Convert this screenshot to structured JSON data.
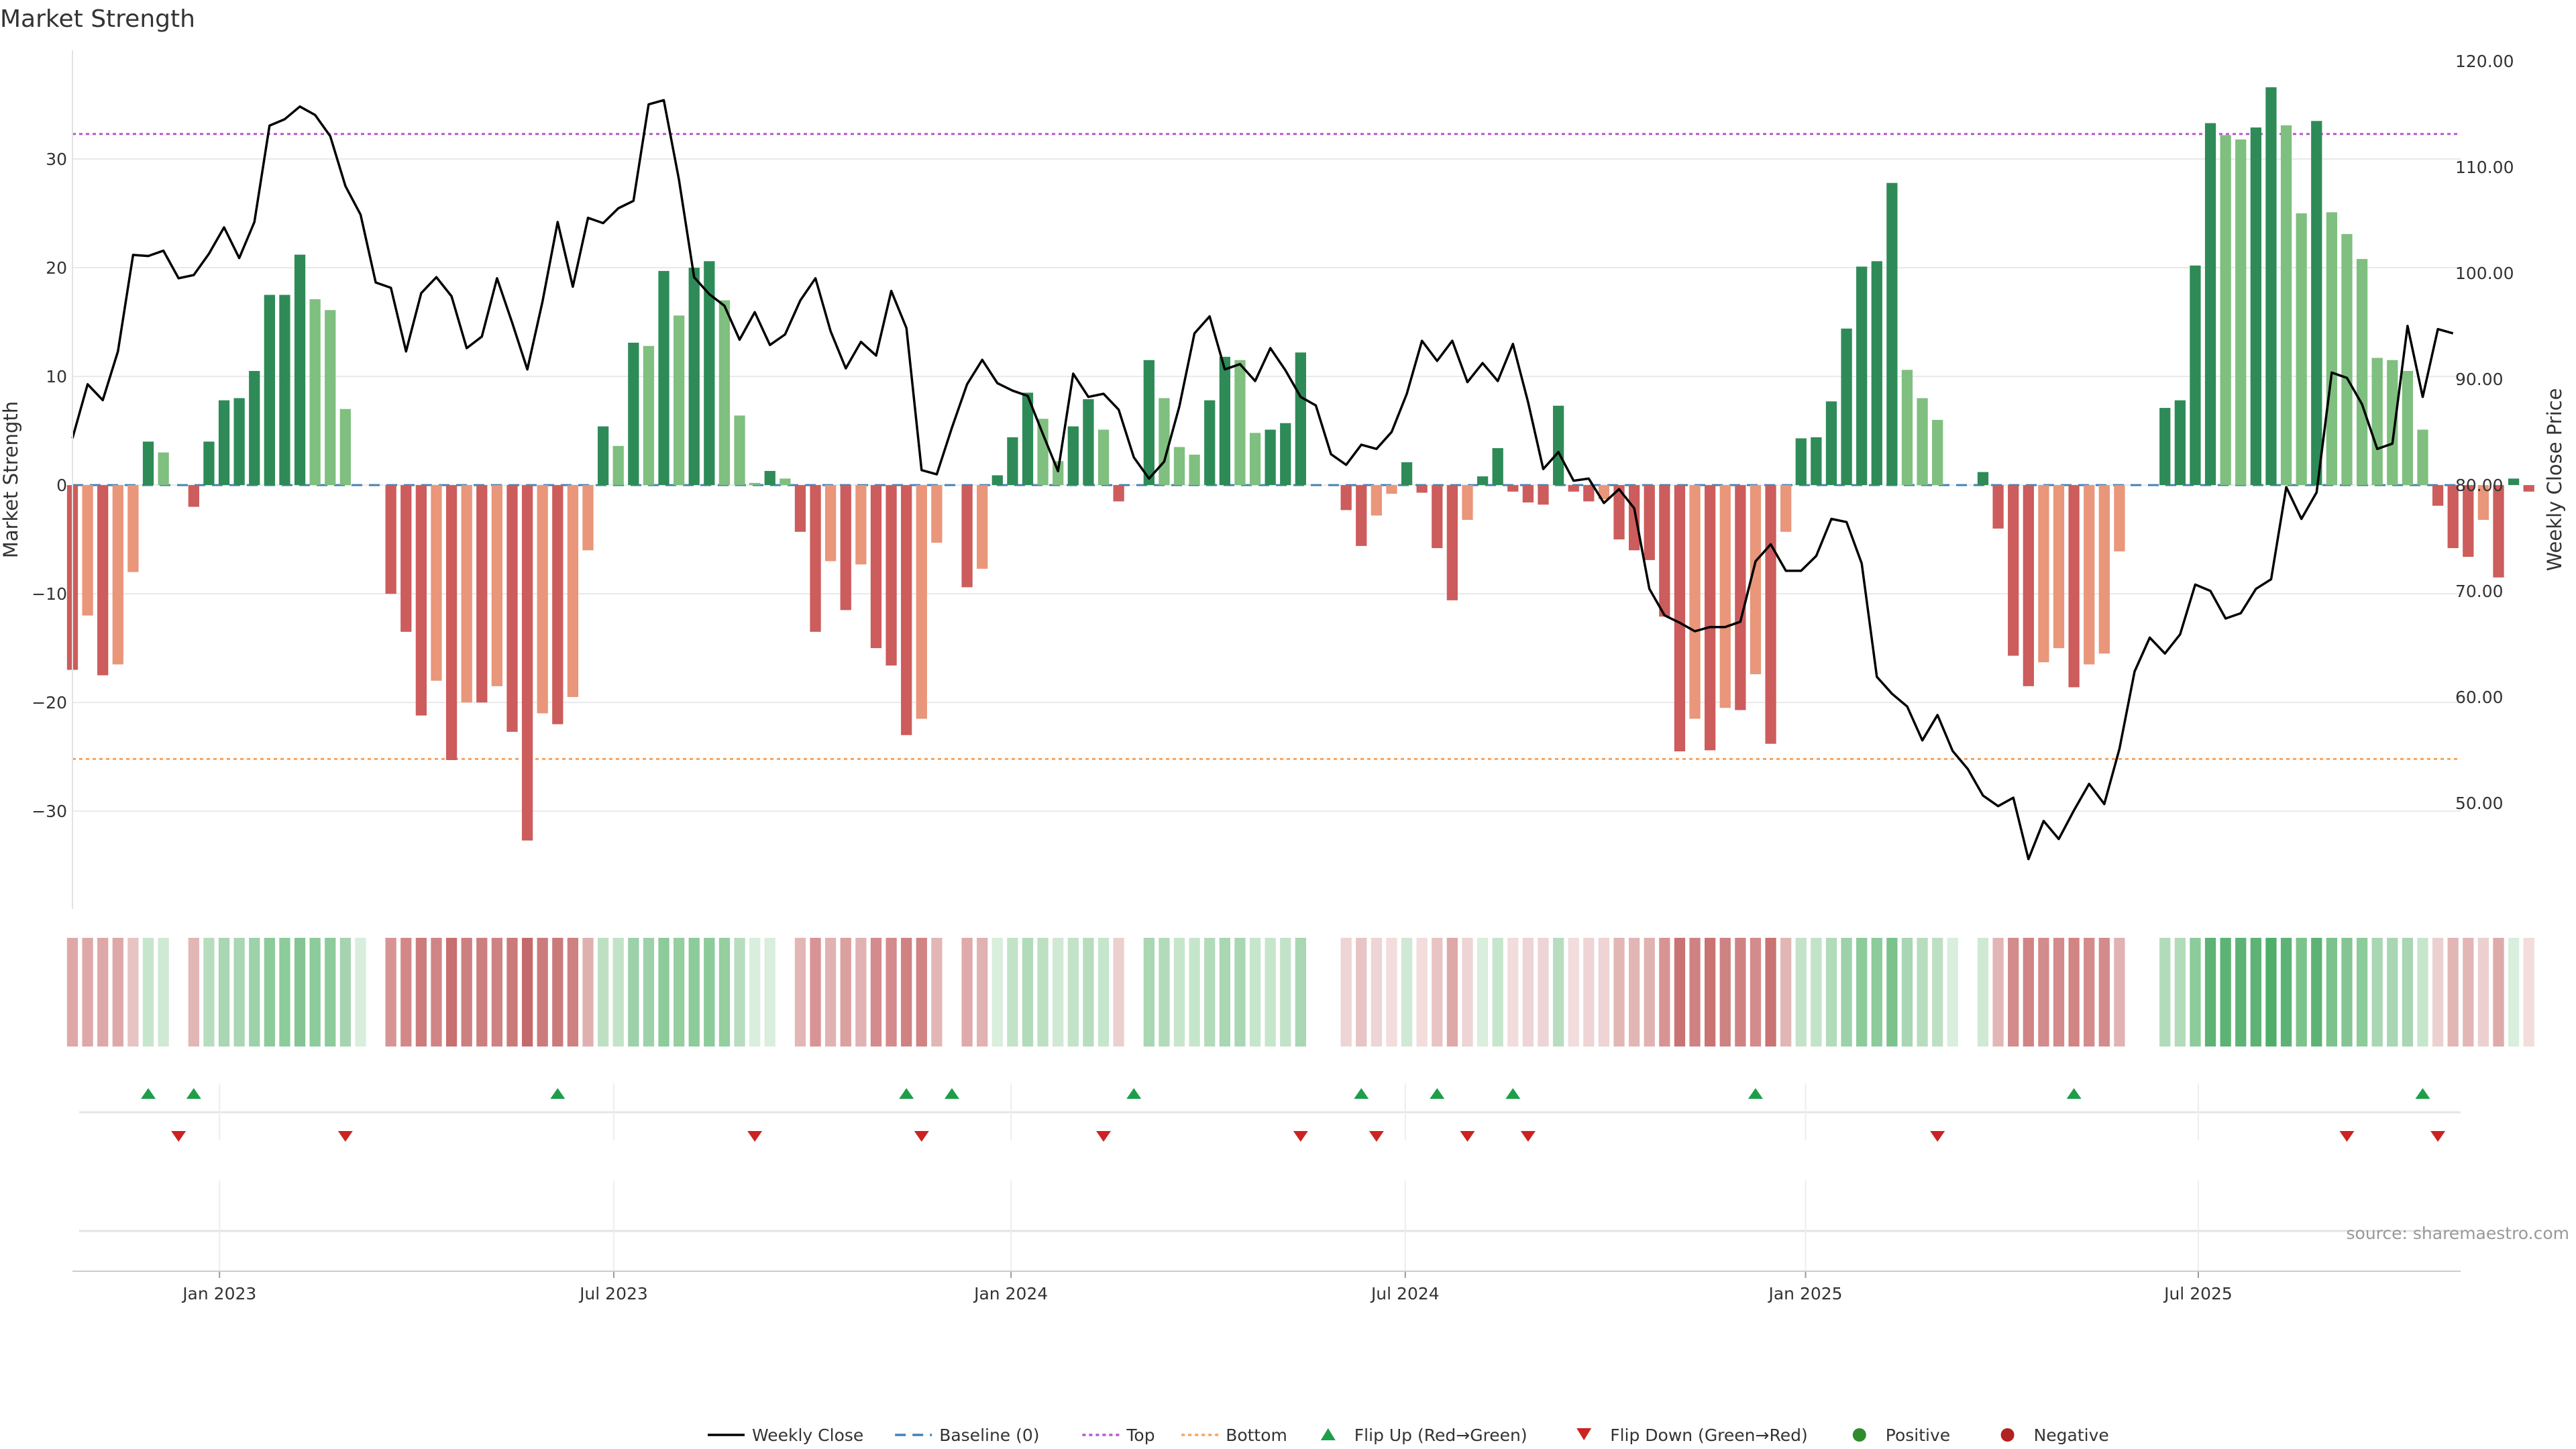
{
  "chart_data": {
    "type": "bar",
    "title": "Market Strength",
    "ylabel_left": "Market Strength",
    "ylabel_right": "Weekly Close Price",
    "source": "source: sharemaestro.com",
    "left_ylim": [
      -39,
      40
    ],
    "right_ylim": [
      40,
      121
    ],
    "left_yticks": [
      {
        "v": 30,
        "label": "30"
      },
      {
        "v": 20,
        "label": "20"
      },
      {
        "v": 10,
        "label": "10"
      },
      {
        "v": 0,
        "label": "0"
      },
      {
        "v": -10,
        "label": "−10"
      },
      {
        "v": -20,
        "label": "−20"
      },
      {
        "v": -30,
        "label": "−30"
      }
    ],
    "right_yticks": [
      {
        "v": 120,
        "label": "120.00"
      },
      {
        "v": 110,
        "label": "110.00"
      },
      {
        "v": 100,
        "label": "100.00"
      },
      {
        "v": 90,
        "label": "90.00"
      },
      {
        "v": 80,
        "label": "80.00"
      },
      {
        "v": 70,
        "label": "70.00"
      },
      {
        "v": 60,
        "label": "60.00"
      },
      {
        "v": 50,
        "label": "50.00"
      }
    ],
    "top_level": 32.3,
    "bottom_level": -25.2,
    "x_domain_weeks": [
      0,
      157.5
    ],
    "x_ticks": [
      {
        "week": 9.7,
        "label": "Jan 2023"
      },
      {
        "week": 35.7,
        "label": "Jul 2023"
      },
      {
        "week": 61.9,
        "label": "Jan 2024"
      },
      {
        "week": 87.9,
        "label": "Jul 2024"
      },
      {
        "week": 114.3,
        "label": "Jan 2025"
      },
      {
        "week": 140.2,
        "label": "Jul 2025"
      }
    ],
    "strength": [
      -17,
      -12,
      -17.5,
      -16.5,
      -8,
      4,
      3,
      0,
      -2,
      4,
      7.8,
      8,
      10.5,
      17.5,
      17.5,
      21.2,
      17.1,
      16.1,
      7,
      0,
      0,
      -10,
      -13.5,
      -21.2,
      -18,
      -25.3,
      -20,
      -20,
      -18.5,
      -22.7,
      -32.7,
      -21,
      -22,
      -19.5,
      -6,
      5.4,
      3.6,
      13.1,
      12.8,
      19.7,
      15.6,
      20,
      20.6,
      17,
      6.4,
      0.2,
      1.3,
      0.6,
      -4.3,
      -13.5,
      -7,
      -11.5,
      -7.3,
      -15,
      -16.6,
      -23,
      -21.5,
      -5.3,
      0,
      -9.4,
      -7.7,
      0.9,
      4.4,
      8.5,
      6.1,
      2.2,
      5.4,
      7.9,
      5.1,
      -1.5,
      0,
      11.5,
      8,
      3.5,
      2.8,
      7.8,
      11.8,
      11.5,
      4.8,
      5.1,
      5.7,
      12.2,
      0,
      0,
      -2.3,
      -5.6,
      -2.8,
      -0.8,
      2.1,
      -0.7,
      -5.8,
      -10.6,
      -3.2,
      0.8,
      3.4,
      -0.6,
      -1.6,
      -1.8,
      7.3,
      -0.6,
      -1.5,
      -1.3,
      -5,
      -6,
      -6.9,
      -12.1,
      -24.5,
      -21.5,
      -24.4,
      -20.5,
      -20.7,
      -17.4,
      -23.8,
      -4.3,
      4.3,
      4.4,
      7.7,
      14.4,
      20.1,
      20.6,
      27.8,
      10.6,
      8,
      6,
      0,
      0,
      1.2,
      -4,
      -15.7,
      -18.5,
      -16.3,
      -15,
      -18.6,
      -16.5,
      -15.5,
      -6.1,
      0,
      0,
      7.1,
      7.8,
      20.2,
      33.3,
      32.2,
      31.8,
      32.9,
      36.6,
      33.1,
      25,
      33.5,
      25.1,
      23.1,
      20.8,
      11.7,
      11.5,
      10.5,
      5.1,
      -1.9,
      -5.8,
      -6.6,
      -3.2,
      -8.5,
      0.6,
      -0.6
    ],
    "weekly_close": [
      84.4,
      89.5,
      88,
      92.6,
      101.7,
      101.6,
      102.1,
      99.5,
      99.8,
      101.8,
      104.3,
      101.4,
      104.8,
      113.9,
      114.5,
      115.7,
      114.9,
      112.9,
      108.2,
      105.5,
      99.1,
      98.6,
      92.6,
      98.1,
      99.6,
      97.8,
      92.9,
      94,
      99.5,
      95.3,
      90.9,
      97.3,
      104.8,
      98.7,
      105.2,
      104.7,
      106.1,
      106.8,
      115.9,
      116.3,
      108.8,
      99.6,
      98,
      96.9,
      93.7,
      96.3,
      93.2,
      94.2,
      97.4,
      99.5,
      94.5,
      91,
      93.5,
      92.2,
      98.3,
      94.8,
      81.4,
      81,
      85.4,
      89.5,
      91.8,
      89.6,
      88.9,
      88.4,
      84.8,
      81.3,
      90.5,
      88.3,
      88.6,
      87.1,
      82.6,
      80.6,
      82.2,
      87.4,
      94.3,
      95.9,
      90.9,
      91.4,
      89.8,
      92.9,
      90.8,
      88.3,
      87.5,
      82.9,
      81.9,
      83.8,
      83.4,
      85,
      88.6,
      93.6,
      91.7,
      93.6,
      89.7,
      91.5,
      89.8,
      93.3,
      87.8,
      81.5,
      83.1,
      80.4,
      80.6,
      78.3,
      79.6,
      77.8,
      70.2,
      67.7,
      67,
      66.2,
      66.6,
      66.6,
      67.1,
      72.8,
      74.4,
      71.9,
      71.9,
      73.3,
      76.8,
      76.5,
      72.6,
      61.9,
      60.3,
      59.1,
      55.9,
      58.3,
      54.9,
      53.2,
      50.7,
      49.7,
      50.5,
      44.7,
      48.3,
      46.6,
      49.3,
      51.8,
      49.9,
      55.1,
      62.4,
      65.6,
      64.1,
      65.9,
      70.6,
      70,
      67.4,
      67.9,
      70.2,
      71.1,
      79.8,
      76.8,
      79.3,
      90.6,
      90.1,
      87.6,
      83.4,
      83.9,
      95,
      88.3,
      94.7,
      94.3
    ],
    "flips_up_weeks": [
      5,
      8,
      32,
      55,
      58,
      70,
      85,
      90,
      95,
      111,
      132,
      155
    ],
    "flips_down_weeks": [
      7,
      18,
      45,
      56,
      68,
      81,
      86,
      92,
      96,
      123,
      150,
      156
    ],
    "heat_colors": [
      "#dfa8a8",
      "#dfa8a8",
      "#dfa8a8",
      "#dfa8a8",
      "#e7c4c4",
      "#c6e6cc",
      "#cfe9d4",
      "#ffffff",
      "#e3b6b6",
      "#b7ddbe",
      "#a9d6b3",
      "#a9d6b3",
      "#9dd1a9",
      "#8ccb9a",
      "#8ccb9a",
      "#84c593",
      "#8ccb9a",
      "#8ccb9a",
      "#a6d4b0",
      "#d9eedd",
      "#ffffff",
      "#d89494",
      "#d38888",
      "#cc7c7c",
      "#d18484",
      "#c86f6f",
      "#cd7f7f",
      "#cd7f7f",
      "#cf8282",
      "#cb7a7a",
      "#c56a6a",
      "#cb7b7b",
      "#cb7a7a",
      "#cf8080",
      "#e0b0b0",
      "#bde0c3",
      "#c2e3c8",
      "#9dd1a9",
      "#9dd1a9",
      "#8ccb9a",
      "#95ce9f",
      "#8ccb9a",
      "#8ccb9a",
      "#95ce9f",
      "#b7ddbe",
      "#d9eedd",
      "#d9eedd",
      "#ffffff",
      "#e3b6b6",
      "#d89494",
      "#e1b2b2",
      "#dba0a0",
      "#e1b2b2",
      "#d48b8b",
      "#d48b8b",
      "#cf8282",
      "#d08484",
      "#e3b6b6",
      "#ffffff",
      "#dfaaaa",
      "#e1b2b2",
      "#d9eedd",
      "#c2e3c8",
      "#b2dbba",
      "#bde0c3",
      "#cfe9d4",
      "#c2e3c8",
      "#b7ddbe",
      "#c6e6cc",
      "#ecd0d0",
      "#ffffff",
      "#a9d6b3",
      "#b2dbba",
      "#c6e6cc",
      "#c6e6cc",
      "#b2dbba",
      "#a9d6b3",
      "#a9d6b3",
      "#c6e6cc",
      "#c6e6cc",
      "#c2e3c8",
      "#a9d6b3",
      "#ffffff",
      "#ffffff",
      "#eed4d4",
      "#e8c4c4",
      "#eed4d4",
      "#f2dcdc",
      "#cfe9d4",
      "#f2dcdc",
      "#e8c4c4",
      "#dfa8a8",
      "#eed4d4",
      "#d9eedd",
      "#c6e6cc",
      "#f2dcdc",
      "#eed4d4",
      "#eed4d4",
      "#b7ddbe",
      "#f2dcdc",
      "#eed4d4",
      "#eed4d4",
      "#e3b6b6",
      "#e3b6b6",
      "#e1b2b2",
      "#d89494",
      "#c97373",
      "#cf8282",
      "#c97373",
      "#cf8282",
      "#cf8282",
      "#d48b8b",
      "#c97373",
      "#e3b6b6",
      "#c2e3c8",
      "#c2e3c8",
      "#b2dbba",
      "#9dd1a9",
      "#8ccb9a",
      "#8ccb9a",
      "#7cc28c",
      "#a9d6b3",
      "#b7ddbe",
      "#bde0c3",
      "#d9eedd",
      "#ffffff",
      "#cfe9d4",
      "#e3b6b6",
      "#d48b8b",
      "#d18484",
      "#d48b8b",
      "#d48b8b",
      "#d18484",
      "#d48b8b",
      "#d48b8b",
      "#e1b2b2",
      "#ffffff",
      "#ffffff",
      "#b2dbba",
      "#b2dbba",
      "#8ccb9a",
      "#5db375",
      "#5db375",
      "#5db375",
      "#5db375",
      "#4fae6a",
      "#5db375",
      "#7cc28c",
      "#5db375",
      "#7cc28c",
      "#84c593",
      "#8ccb9a",
      "#a9d6b3",
      "#a9d6b3",
      "#a9d6b3",
      "#c6e6cc",
      "#ecd0d0",
      "#e3b6b6",
      "#e3b6b6",
      "#ecd0d0",
      "#dfaaaa",
      "#d9eedd",
      "#f2dcdc"
    ],
    "legend": [
      {
        "kind": "line-solid",
        "label": "Weekly Close"
      },
      {
        "kind": "line-dash",
        "label": "Baseline (0)"
      },
      {
        "kind": "line-top",
        "label": "Top"
      },
      {
        "kind": "line-bottom",
        "label": "Bottom"
      },
      {
        "kind": "tri-up",
        "label": "Flip Up (Red→Green)"
      },
      {
        "kind": "tri-down",
        "label": "Flip Down (Green→Red)"
      },
      {
        "kind": "dot-green",
        "label": "Positive"
      },
      {
        "kind": "dot-red",
        "label": "Negative"
      }
    ]
  },
  "colors": {
    "pos_strong": "#2e8b57",
    "pos_weak": "#7fbf7f",
    "neg_strong": "#cd5c5c",
    "neg_weak": "#e9967a",
    "close_line": "#000000",
    "baseline": "#4682b4",
    "top_line": "#ba55d3",
    "bottom_line": "#f4a460",
    "flip_up": "#1e9e4a",
    "flip_down": "#cc2222",
    "dot_green": "#2e8b2e",
    "dot_red": "#b22222"
  }
}
